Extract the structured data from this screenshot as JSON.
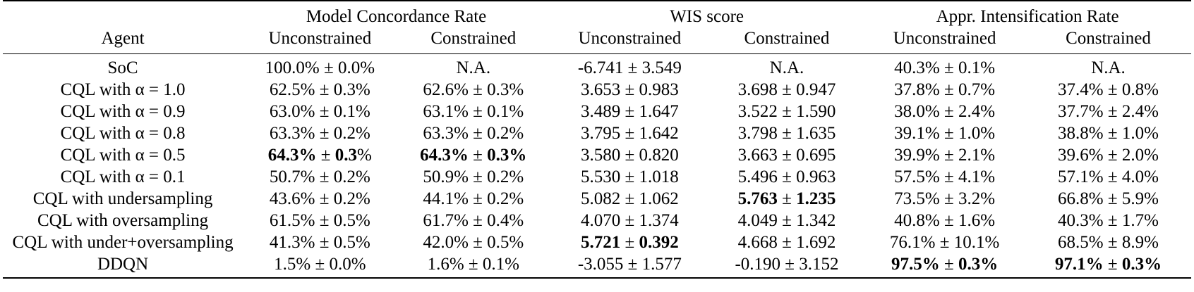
{
  "table": {
    "group_headers": [
      "Model Concordance Rate",
      "WIS score",
      "Appr. Intensification Rate"
    ],
    "agent_header": "Agent",
    "sub_headers": [
      "Unconstrained",
      "Constrained",
      "Unconstrained",
      "Constrained",
      "Unconstrained",
      "Constrained"
    ],
    "rows": [
      {
        "agent": "SoC",
        "cells": [
          {
            "m": "100.0%",
            "pm": " ± ",
            "s": "0.0%",
            "bm": false,
            "bs": false
          },
          {
            "m": "N.A.",
            "pm": "",
            "s": "",
            "bm": false,
            "bs": false
          },
          {
            "m": "-6.741",
            "pm": " ± ",
            "s": "3.549",
            "bm": false,
            "bs": false
          },
          {
            "m": "N.A.",
            "pm": "",
            "s": "",
            "bm": false,
            "bs": false
          },
          {
            "m": "40.3%",
            "pm": " ± ",
            "s": "0.1%",
            "bm": false,
            "bs": false
          },
          {
            "m": "N.A.",
            "pm": "",
            "s": "",
            "bm": false,
            "bs": false
          }
        ]
      },
      {
        "agent": "CQL with α = 1.0",
        "cells": [
          {
            "m": "62.5%",
            "pm": " ± ",
            "s": "0.3%",
            "bm": false,
            "bs": false
          },
          {
            "m": "62.6%",
            "pm": " ± ",
            "s": "0.3%",
            "bm": false,
            "bs": false
          },
          {
            "m": "3.653",
            "pm": " ± ",
            "s": "0.983",
            "bm": false,
            "bs": false
          },
          {
            "m": "3.698",
            "pm": " ± ",
            "s": "0.947",
            "bm": false,
            "bs": false
          },
          {
            "m": "37.8%",
            "pm": " ± ",
            "s": "0.7%",
            "bm": false,
            "bs": false
          },
          {
            "m": "37.4%",
            "pm": " ± ",
            "s": "0.8%",
            "bm": false,
            "bs": false
          }
        ]
      },
      {
        "agent": "CQL with α = 0.9",
        "cells": [
          {
            "m": "63.0%",
            "pm": " ± ",
            "s": "0.1%",
            "bm": false,
            "bs": false
          },
          {
            "m": "63.1%",
            "pm": " ± ",
            "s": "0.1%",
            "bm": false,
            "bs": false
          },
          {
            "m": "3.489",
            "pm": " ± ",
            "s": "1.647",
            "bm": false,
            "bs": false
          },
          {
            "m": "3.522",
            "pm": " ± ",
            "s": "1.590",
            "bm": false,
            "bs": false
          },
          {
            "m": "38.0%",
            "pm": " ± ",
            "s": "2.4%",
            "bm": false,
            "bs": false
          },
          {
            "m": "37.7%",
            "pm": " ± ",
            "s": "2.4%",
            "bm": false,
            "bs": false
          }
        ]
      },
      {
        "agent": "CQL with α = 0.8",
        "cells": [
          {
            "m": "63.3%",
            "pm": " ± ",
            "s": "0.2%",
            "bm": false,
            "bs": false
          },
          {
            "m": "63.3%",
            "pm": " ± ",
            "s": "0.2%",
            "bm": false,
            "bs": false
          },
          {
            "m": "3.795",
            "pm": " ± ",
            "s": "1.642",
            "bm": false,
            "bs": false
          },
          {
            "m": "3.798",
            "pm": " ± ",
            "s": "1.635",
            "bm": false,
            "bs": false
          },
          {
            "m": "39.1%",
            "pm": " ± ",
            "s": "1.0%",
            "bm": false,
            "bs": false
          },
          {
            "m": "38.8%",
            "pm": " ± ",
            "s": "1.0%",
            "bm": false,
            "bs": false
          }
        ]
      },
      {
        "agent": "CQL with α = 0.5",
        "cells": [
          {
            "m": "64.3%",
            "pm": " ± ",
            "s": "0.3%",
            "bm": true,
            "bs": true,
            "sfix": "0.3",
            "stail": "%"
          },
          {
            "m": "64.3%",
            "pm": " ± ",
            "s": "0.3%",
            "bm": true,
            "bs": true
          },
          {
            "m": "3.580",
            "pm": " ± ",
            "s": "0.820",
            "bm": false,
            "bs": false
          },
          {
            "m": "3.663",
            "pm": " ± ",
            "s": "0.695",
            "bm": false,
            "bs": false
          },
          {
            "m": "39.9%",
            "pm": " ± ",
            "s": "2.1%",
            "bm": false,
            "bs": false
          },
          {
            "m": "39.6%",
            "pm": " ± ",
            "s": "2.0%",
            "bm": false,
            "bs": false
          }
        ]
      },
      {
        "agent": "CQL with α = 0.1",
        "cells": [
          {
            "m": "50.7%",
            "pm": " ± ",
            "s": "0.2%",
            "bm": false,
            "bs": false
          },
          {
            "m": "50.9%",
            "pm": " ± ",
            "s": "0.2%",
            "bm": false,
            "bs": false
          },
          {
            "m": "5.530",
            "pm": " ± ",
            "s": "1.018",
            "bm": false,
            "bs": false
          },
          {
            "m": "5.496",
            "pm": " ± ",
            "s": "0.963",
            "bm": false,
            "bs": false
          },
          {
            "m": "57.5%",
            "pm": " ± ",
            "s": "4.1%",
            "bm": false,
            "bs": false
          },
          {
            "m": "57.1%",
            "pm": " ± ",
            "s": "4.0%",
            "bm": false,
            "bs": false
          }
        ]
      },
      {
        "agent": "CQL with undersampling",
        "cells": [
          {
            "m": "43.6%",
            "pm": " ± ",
            "s": "0.2%",
            "bm": false,
            "bs": false
          },
          {
            "m": "44.1%",
            "pm": " ± ",
            "s": "0.2%",
            "bm": false,
            "bs": false
          },
          {
            "m": "5.082",
            "pm": " ± ",
            "s": "1.062",
            "bm": false,
            "bs": false
          },
          {
            "m": "5.763",
            "pm": " ± ",
            "s": "1.235",
            "bm": true,
            "bs": true
          },
          {
            "m": "73.5%",
            "pm": " ± ",
            "s": "3.2%",
            "bm": false,
            "bs": false
          },
          {
            "m": "66.8%",
            "pm": " ± ",
            "s": "5.9%",
            "bm": false,
            "bs": false
          }
        ]
      },
      {
        "agent": "CQL with oversampling",
        "cells": [
          {
            "m": "61.5%",
            "pm": " ± ",
            "s": "0.5%",
            "bm": false,
            "bs": false
          },
          {
            "m": "61.7%",
            "pm": " ± ",
            "s": "0.4%",
            "bm": false,
            "bs": false
          },
          {
            "m": "4.070",
            "pm": " ± ",
            "s": "1.374",
            "bm": false,
            "bs": false
          },
          {
            "m": "4.049",
            "pm": " ± ",
            "s": "1.342",
            "bm": false,
            "bs": false
          },
          {
            "m": "40.8%",
            "pm": " ± ",
            "s": "1.6%",
            "bm": false,
            "bs": false
          },
          {
            "m": "40.3%",
            "pm": " ± ",
            "s": "1.7%",
            "bm": false,
            "bs": false
          }
        ]
      },
      {
        "agent": "CQL with under+oversampling",
        "cells": [
          {
            "m": "41.3%",
            "pm": " ± ",
            "s": "0.5%",
            "bm": false,
            "bs": false
          },
          {
            "m": "42.0%",
            "pm": " ± ",
            "s": "0.5%",
            "bm": false,
            "bs": false
          },
          {
            "m": "5.721",
            "pm": " ± ",
            "s": "0.392",
            "bm": true,
            "bs": true
          },
          {
            "m": "4.668",
            "pm": " ± ",
            "s": "1.692",
            "bm": false,
            "bs": false
          },
          {
            "m": "76.1%",
            "pm": " ± ",
            "s": "10.1%",
            "bm": false,
            "bs": false
          },
          {
            "m": "68.5%",
            "pm": " ± ",
            "s": "8.9%",
            "bm": false,
            "bs": false
          }
        ]
      },
      {
        "agent": "DDQN",
        "cells": [
          {
            "m": "1.5%",
            "pm": " ± ",
            "s": "0.0%",
            "bm": false,
            "bs": false
          },
          {
            "m": "1.6%",
            "pm": " ± ",
            "s": "0.1%",
            "bm": false,
            "bs": false
          },
          {
            "m": "-3.055",
            "pm": " ± ",
            "s": "1.577",
            "bm": false,
            "bs": false
          },
          {
            "m": "-0.190",
            "pm": " ± ",
            "s": "3.152",
            "bm": false,
            "bs": false
          },
          {
            "m": "97.5%",
            "pm": " ± ",
            "s": "0.3%",
            "bm": true,
            "bs": true
          },
          {
            "m": "97.1%",
            "pm": " ± ",
            "s": "0.3%",
            "bm": true,
            "bs": true
          }
        ]
      }
    ]
  }
}
